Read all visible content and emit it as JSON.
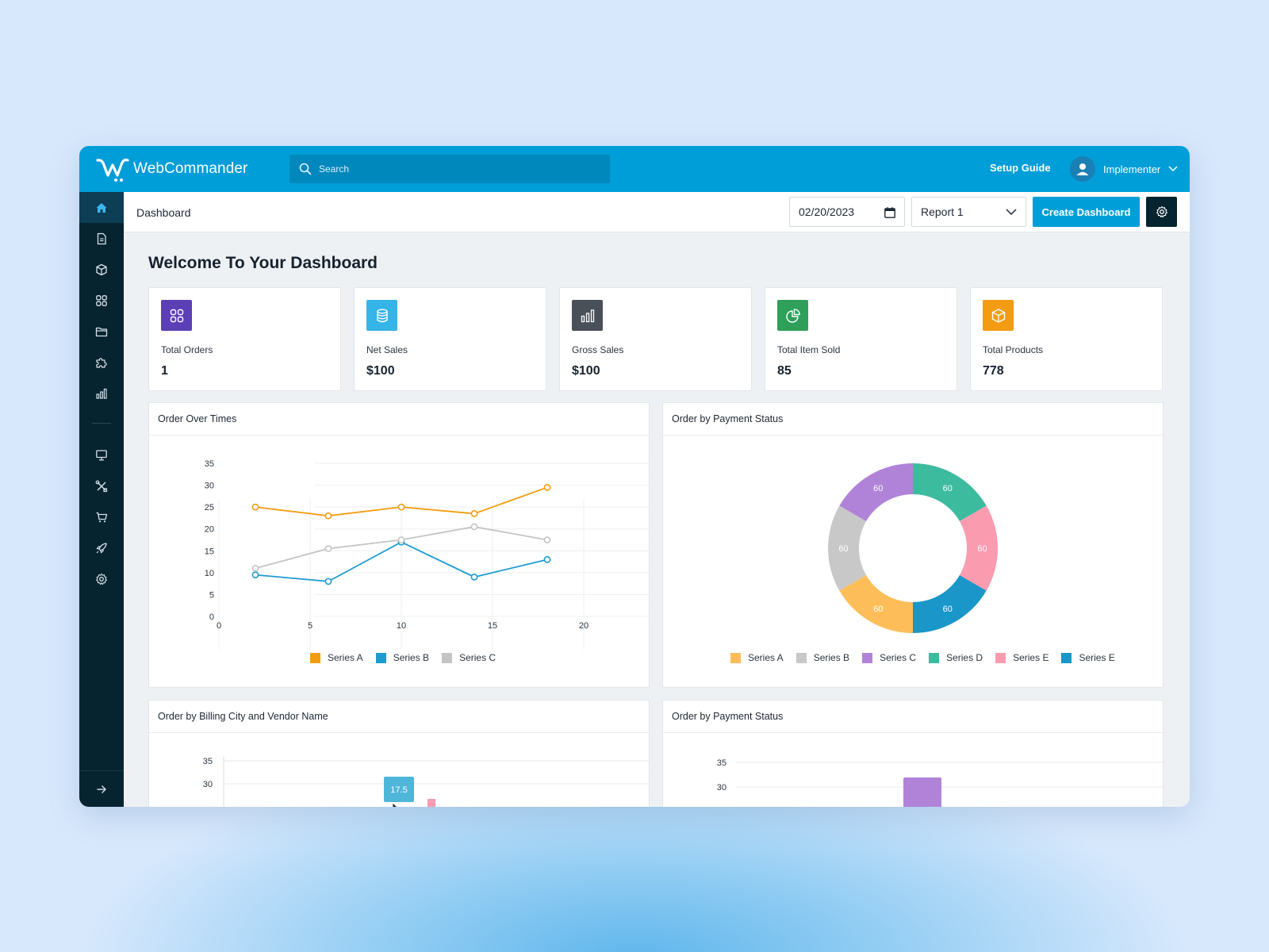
{
  "app": {
    "name": "WebCommander"
  },
  "search": {
    "placeholder": "Search"
  },
  "topbar": {
    "setup_guide": "Setup Guide",
    "user_name": "Implementer"
  },
  "header": {
    "title": "Dashboard",
    "date": "02/20/2023",
    "report": "Report 1",
    "create_label": "Create Dashboard"
  },
  "sidebar": {
    "items": [
      {
        "icon": "home-icon",
        "active": true
      },
      {
        "icon": "document-icon"
      },
      {
        "icon": "box-icon"
      },
      {
        "icon": "grid-icon"
      },
      {
        "icon": "folder-icon"
      },
      {
        "icon": "puzzle-icon"
      },
      {
        "icon": "bar-chart-icon"
      },
      {
        "icon": "monitor-icon"
      },
      {
        "icon": "tools-icon"
      },
      {
        "icon": "cart-icon"
      },
      {
        "icon": "rocket-icon"
      },
      {
        "icon": "gear-icon"
      }
    ],
    "collapse_icon": "arrow-right-icon"
  },
  "welcome": "Welcome To Your Dashboard",
  "stats": [
    {
      "label": "Total Orders",
      "value": "1",
      "icon": "grid-icon",
      "color": "#5b3fb5"
    },
    {
      "label": "Net Sales",
      "value": "$100",
      "icon": "database-icon",
      "color": "#35b4e8"
    },
    {
      "label": "Gross Sales",
      "value": "$100",
      "icon": "bar-chart-icon",
      "color": "#4a5058"
    },
    {
      "label": "Total Item Sold",
      "value": "85",
      "icon": "pie-chart-icon",
      "color": "#2ea05a"
    },
    {
      "label": "Total Products",
      "value": "778",
      "icon": "box-icon",
      "color": "#f39c12"
    }
  ],
  "panels": {
    "line": "Order Over Times",
    "donut": "Order by Payment Status",
    "bar1": "Order by Billing City and Vendor Name",
    "bar2": "Order by Payment Status"
  },
  "chart_data": [
    {
      "type": "line",
      "title": "Order Over Times",
      "xlabel": "",
      "ylabel": "",
      "xlim": [
        0,
        20
      ],
      "ylim": [
        0,
        35
      ],
      "xticks": [
        0,
        5,
        10,
        15,
        20
      ],
      "yticks": [
        0,
        5,
        10,
        15,
        20,
        25,
        30,
        35
      ],
      "grid": true,
      "legend": "bottom",
      "series": [
        {
          "name": "Series A",
          "color": "#f39c12",
          "x": [
            2,
            6,
            10,
            14,
            18
          ],
          "y": [
            25,
            23,
            25,
            23.5,
            29.5
          ]
        },
        {
          "name": "Series B",
          "color": "#1e9bd0",
          "x": [
            2,
            6,
            10,
            14,
            18
          ],
          "y": [
            9.5,
            8,
            17,
            9,
            13
          ]
        },
        {
          "name": "Series C",
          "color": "#c4c4c4",
          "x": [
            2,
            6,
            10,
            14,
            18
          ],
          "y": [
            11,
            15.5,
            17.5,
            20.5,
            17.5
          ]
        }
      ]
    },
    {
      "type": "pie",
      "title": "Order by Payment Status",
      "legend": "bottom",
      "labels": [
        "Series A",
        "Series B",
        "Series C",
        "Series D",
        "Series E",
        "Series E"
      ],
      "values": [
        60,
        60,
        60,
        60,
        60,
        60
      ],
      "colors": [
        "#fdbe5a",
        "#c8c8c8",
        "#b183d8",
        "#3dbb9e",
        "#fb9bb0",
        "#1a96c8"
      ]
    },
    {
      "type": "bar",
      "title": "Order by Billing City and Vendor Name",
      "yticks": [
        30,
        35
      ],
      "tooltip": "17.5"
    },
    {
      "type": "bar",
      "title": "Order by Payment Status",
      "yticks": [
        30,
        35
      ]
    }
  ]
}
